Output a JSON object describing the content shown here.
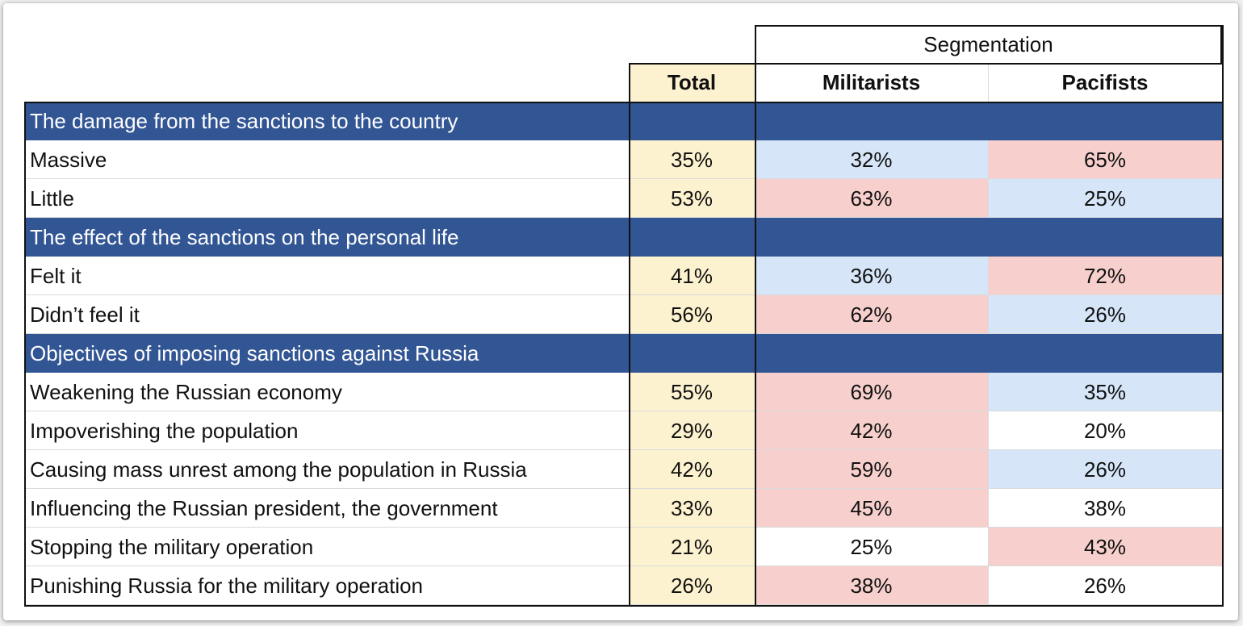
{
  "chart_data": {
    "type": "table",
    "group_header": "Segmentation",
    "columns": [
      "Total",
      "Militarists",
      "Pacifists"
    ],
    "colors": {
      "section": "#325594",
      "total": "#fdf2cf",
      "high": "#f7d0cd",
      "low": "#d6e6f8",
      "none": "#ffffff"
    },
    "rows": [
      {
        "type": "section",
        "label": "The damage from the sanctions to the country"
      },
      {
        "type": "data",
        "label": "Massive",
        "values": [
          "35%",
          "32%",
          "65%"
        ],
        "highlight": [
          "low",
          "high"
        ]
      },
      {
        "type": "data",
        "label": "Little",
        "values": [
          "53%",
          "63%",
          "25%"
        ],
        "highlight": [
          "high",
          "low"
        ]
      },
      {
        "type": "section",
        "label": "The effect of the sanctions on the personal life"
      },
      {
        "type": "data",
        "label": "Felt it",
        "values": [
          "41%",
          "36%",
          "72%"
        ],
        "highlight": [
          "low",
          "high"
        ]
      },
      {
        "type": "data",
        "label": "Didn’t feel it",
        "values": [
          "56%",
          "62%",
          "26%"
        ],
        "highlight": [
          "high",
          "low"
        ]
      },
      {
        "type": "section",
        "label": "Objectives of imposing sanctions against Russia"
      },
      {
        "type": "data",
        "label": "Weakening the Russian economy",
        "values": [
          "55%",
          "69%",
          "35%"
        ],
        "highlight": [
          "high",
          "low"
        ]
      },
      {
        "type": "data",
        "label": "Impoverishing the population",
        "values": [
          "29%",
          "42%",
          "20%"
        ],
        "highlight": [
          "high",
          "none"
        ]
      },
      {
        "type": "data",
        "label": "Causing mass unrest among the population in Russia",
        "values": [
          "42%",
          "59%",
          "26%"
        ],
        "highlight": [
          "high",
          "low"
        ]
      },
      {
        "type": "data",
        "label": "Influencing the Russian president, the government",
        "values": [
          "33%",
          "45%",
          "38%"
        ],
        "highlight": [
          "high",
          "none"
        ]
      },
      {
        "type": "data",
        "label": "Stopping the military operation",
        "values": [
          "21%",
          "25%",
          "43%"
        ],
        "highlight": [
          "none",
          "high"
        ]
      },
      {
        "type": "data",
        "label": "Punishing Russia for the military operation",
        "values": [
          "26%",
          "38%",
          "26%"
        ],
        "highlight": [
          "high",
          "none"
        ]
      }
    ]
  }
}
